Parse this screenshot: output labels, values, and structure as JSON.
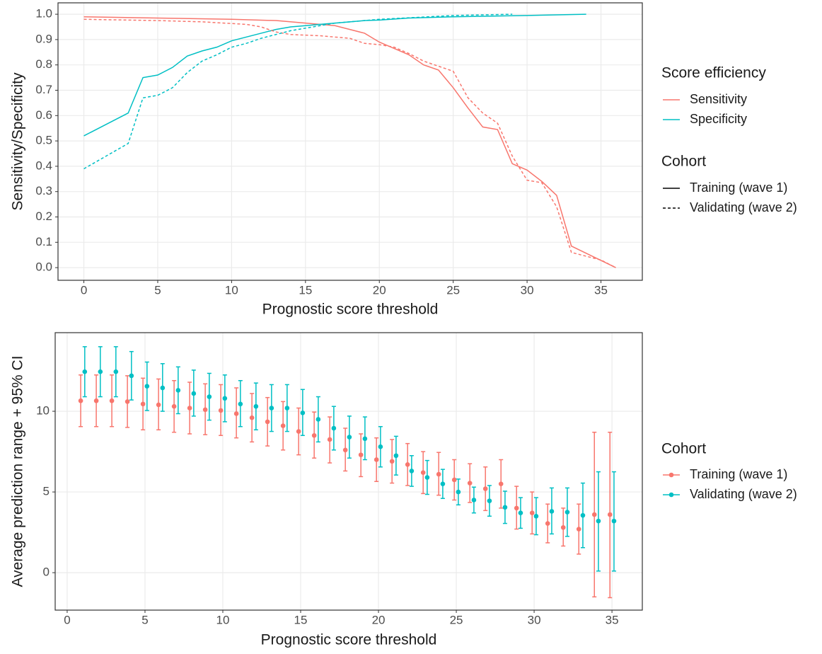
{
  "chart_data": [
    {
      "type": "line",
      "x_label": "Prognostic score threshold",
      "y_label": "Sensitivity/Specificity",
      "xlim": [
        -1.75,
        37.8
      ],
      "ylim": [
        -0.05,
        1.045
      ],
      "xticks": [
        0,
        5,
        10,
        15,
        20,
        25,
        30,
        35
      ],
      "yticks": [
        {
          "value": 0,
          "label": "0.0"
        },
        0.1,
        0.2,
        0.3,
        0.4,
        0.5,
        0.6,
        0.7,
        0.8,
        0.9,
        {
          "value": 1,
          "label": "1.0"
        }
      ],
      "grid": true,
      "legends": [
        {
          "title": "Score efficiency",
          "entries": [
            {
              "name": "Sensitivity",
              "color": "#f8766d",
              "dash": "solid"
            },
            {
              "name": "Specificity",
              "color": "#00bfc4",
              "dash": "solid"
            }
          ]
        },
        {
          "title": "Cohort",
          "entries": [
            {
              "name": "Training (wave 1)",
              "color": "#000000",
              "dash": "solid"
            },
            {
              "name": "Validating (wave 2)",
              "color": "#000000",
              "dash": "dashed"
            }
          ]
        }
      ],
      "series": [
        {
          "color": "#f8766d",
          "dash": "solid",
          "x": [
            0,
            5,
            10,
            13,
            15,
            17,
            19,
            20,
            21,
            22,
            23,
            24,
            25,
            26,
            27,
            28,
            29,
            30,
            31,
            32,
            33,
            36
          ],
          "values": [
            0.99,
            0.985,
            0.98,
            0.975,
            0.965,
            0.955,
            0.925,
            0.89,
            0.865,
            0.84,
            0.8,
            0.78,
            0.71,
            0.63,
            0.555,
            0.545,
            0.41,
            0.385,
            0.34,
            0.285,
            0.085,
            0.0
          ]
        },
        {
          "color": "#00bfc4",
          "dash": "solid",
          "x": [
            0,
            3,
            4,
            5,
            6,
            7,
            8,
            9,
            10,
            11,
            12,
            13,
            14,
            15,
            16,
            17,
            18,
            19,
            20,
            22,
            25,
            30,
            34
          ],
          "values": [
            0.52,
            0.61,
            0.75,
            0.76,
            0.79,
            0.835,
            0.855,
            0.87,
            0.895,
            0.91,
            0.925,
            0.94,
            0.95,
            0.955,
            0.96,
            0.965,
            0.97,
            0.975,
            0.977,
            0.985,
            0.99,
            0.995,
            1.0
          ]
        },
        {
          "color": "#f8766d",
          "dash": "dashed",
          "x": [
            0,
            5,
            8,
            11,
            12,
            13,
            14,
            16,
            18,
            19,
            20,
            21,
            22,
            23,
            24,
            25,
            26,
            27,
            28,
            29,
            30,
            31,
            32,
            33,
            35,
            36
          ],
          "values": [
            0.98,
            0.975,
            0.97,
            0.96,
            0.95,
            0.93,
            0.92,
            0.915,
            0.905,
            0.885,
            0.88,
            0.87,
            0.845,
            0.815,
            0.795,
            0.775,
            0.67,
            0.61,
            0.57,
            0.44,
            0.345,
            0.335,
            0.24,
            0.06,
            0.03,
            0.0
          ]
        },
        {
          "color": "#00bfc4",
          "dash": "dashed",
          "x": [
            0,
            3,
            4,
            5,
            6,
            7,
            8,
            9,
            10,
            11,
            12,
            13,
            14,
            15,
            16,
            17,
            18,
            19,
            20,
            25,
            29
          ],
          "values": [
            0.39,
            0.49,
            0.67,
            0.68,
            0.71,
            0.77,
            0.815,
            0.84,
            0.87,
            0.885,
            0.905,
            0.92,
            0.935,
            0.945,
            0.955,
            0.965,
            0.97,
            0.975,
            0.98,
            0.995,
            1.0
          ]
        }
      ]
    },
    {
      "type": "errorbar",
      "x_label": "Prognostic score threshold",
      "y_label": "Average prediction range + 95% CI",
      "xlim": [
        -0.77,
        36.95
      ],
      "ylim": [
        -2.32,
        14.87
      ],
      "xticks": [
        0,
        5,
        10,
        15,
        20,
        25,
        30,
        35
      ],
      "yticks": [
        0,
        5,
        10
      ],
      "grid": true,
      "legend_title": "Cohort",
      "x": [
        1,
        2,
        3,
        4,
        5,
        6,
        7,
        8,
        9,
        10,
        11,
        12,
        13,
        14,
        15,
        16,
        17,
        18,
        19,
        20,
        21,
        22,
        23,
        24,
        25,
        26,
        27,
        28,
        29,
        30,
        31,
        32,
        33,
        34,
        35
      ],
      "series": [
        {
          "name": "Training (wave 1)",
          "color": "#f8766d",
          "values": [
            10.65,
            10.65,
            10.65,
            10.6,
            10.45,
            10.4,
            10.3,
            10.2,
            10.1,
            10.05,
            9.85,
            9.6,
            9.35,
            9.1,
            8.75,
            8.5,
            8.25,
            7.6,
            7.3,
            7.0,
            6.9,
            6.7,
            6.2,
            6.1,
            5.75,
            5.55,
            5.2,
            5.5,
            4.0,
            3.7,
            3.05,
            2.8,
            2.7,
            3.6,
            3.6
          ],
          "lower": [
            9.05,
            9.05,
            9.05,
            9.0,
            8.85,
            8.85,
            8.7,
            8.6,
            8.55,
            8.5,
            8.35,
            8.1,
            7.85,
            7.6,
            7.3,
            7.1,
            6.8,
            6.3,
            5.95,
            5.65,
            5.55,
            5.4,
            4.9,
            4.8,
            4.5,
            4.35,
            3.85,
            4.0,
            2.7,
            2.4,
            1.85,
            1.65,
            1.15,
            -1.5,
            -1.55
          ],
          "upper": [
            12.25,
            12.25,
            12.25,
            12.2,
            12.05,
            12.0,
            11.9,
            11.8,
            11.7,
            11.65,
            11.45,
            11.1,
            10.85,
            10.6,
            10.2,
            9.95,
            9.65,
            8.95,
            8.6,
            8.35,
            8.25,
            8.0,
            7.5,
            7.45,
            7.0,
            6.75,
            6.55,
            7.0,
            5.35,
            5.0,
            4.25,
            4.0,
            4.25,
            8.7,
            8.7
          ]
        },
        {
          "name": "Validating (wave 2)",
          "color": "#00bfc4",
          "values": [
            12.45,
            12.45,
            12.45,
            12.2,
            11.55,
            11.45,
            11.3,
            11.1,
            10.9,
            10.8,
            10.45,
            10.3,
            10.2,
            10.2,
            9.9,
            9.5,
            8.95,
            8.4,
            8.3,
            7.8,
            7.25,
            6.3,
            5.9,
            5.5,
            5.0,
            4.5,
            4.45,
            4.05,
            3.7,
            3.5,
            3.8,
            3.75,
            3.55,
            3.2,
            3.2
          ],
          "lower": [
            10.9,
            10.9,
            10.9,
            10.7,
            10.05,
            10.0,
            9.85,
            9.7,
            9.45,
            9.35,
            9.05,
            8.85,
            8.75,
            8.75,
            8.5,
            8.1,
            7.6,
            7.1,
            7.0,
            6.55,
            6.05,
            5.35,
            4.85,
            4.6,
            4.2,
            3.7,
            3.5,
            3.05,
            2.75,
            2.35,
            2.4,
            2.25,
            1.55,
            0.1,
            0.1
          ],
          "upper": [
            14.0,
            14.0,
            14.0,
            13.7,
            13.05,
            12.95,
            12.75,
            12.55,
            12.35,
            12.25,
            11.9,
            11.75,
            11.65,
            11.65,
            11.35,
            10.9,
            10.3,
            9.7,
            9.65,
            9.05,
            8.45,
            7.25,
            6.95,
            6.4,
            5.8,
            5.3,
            5.4,
            5.05,
            4.65,
            4.65,
            5.25,
            5.25,
            5.55,
            6.25,
            6.25
          ]
        }
      ]
    }
  ]
}
